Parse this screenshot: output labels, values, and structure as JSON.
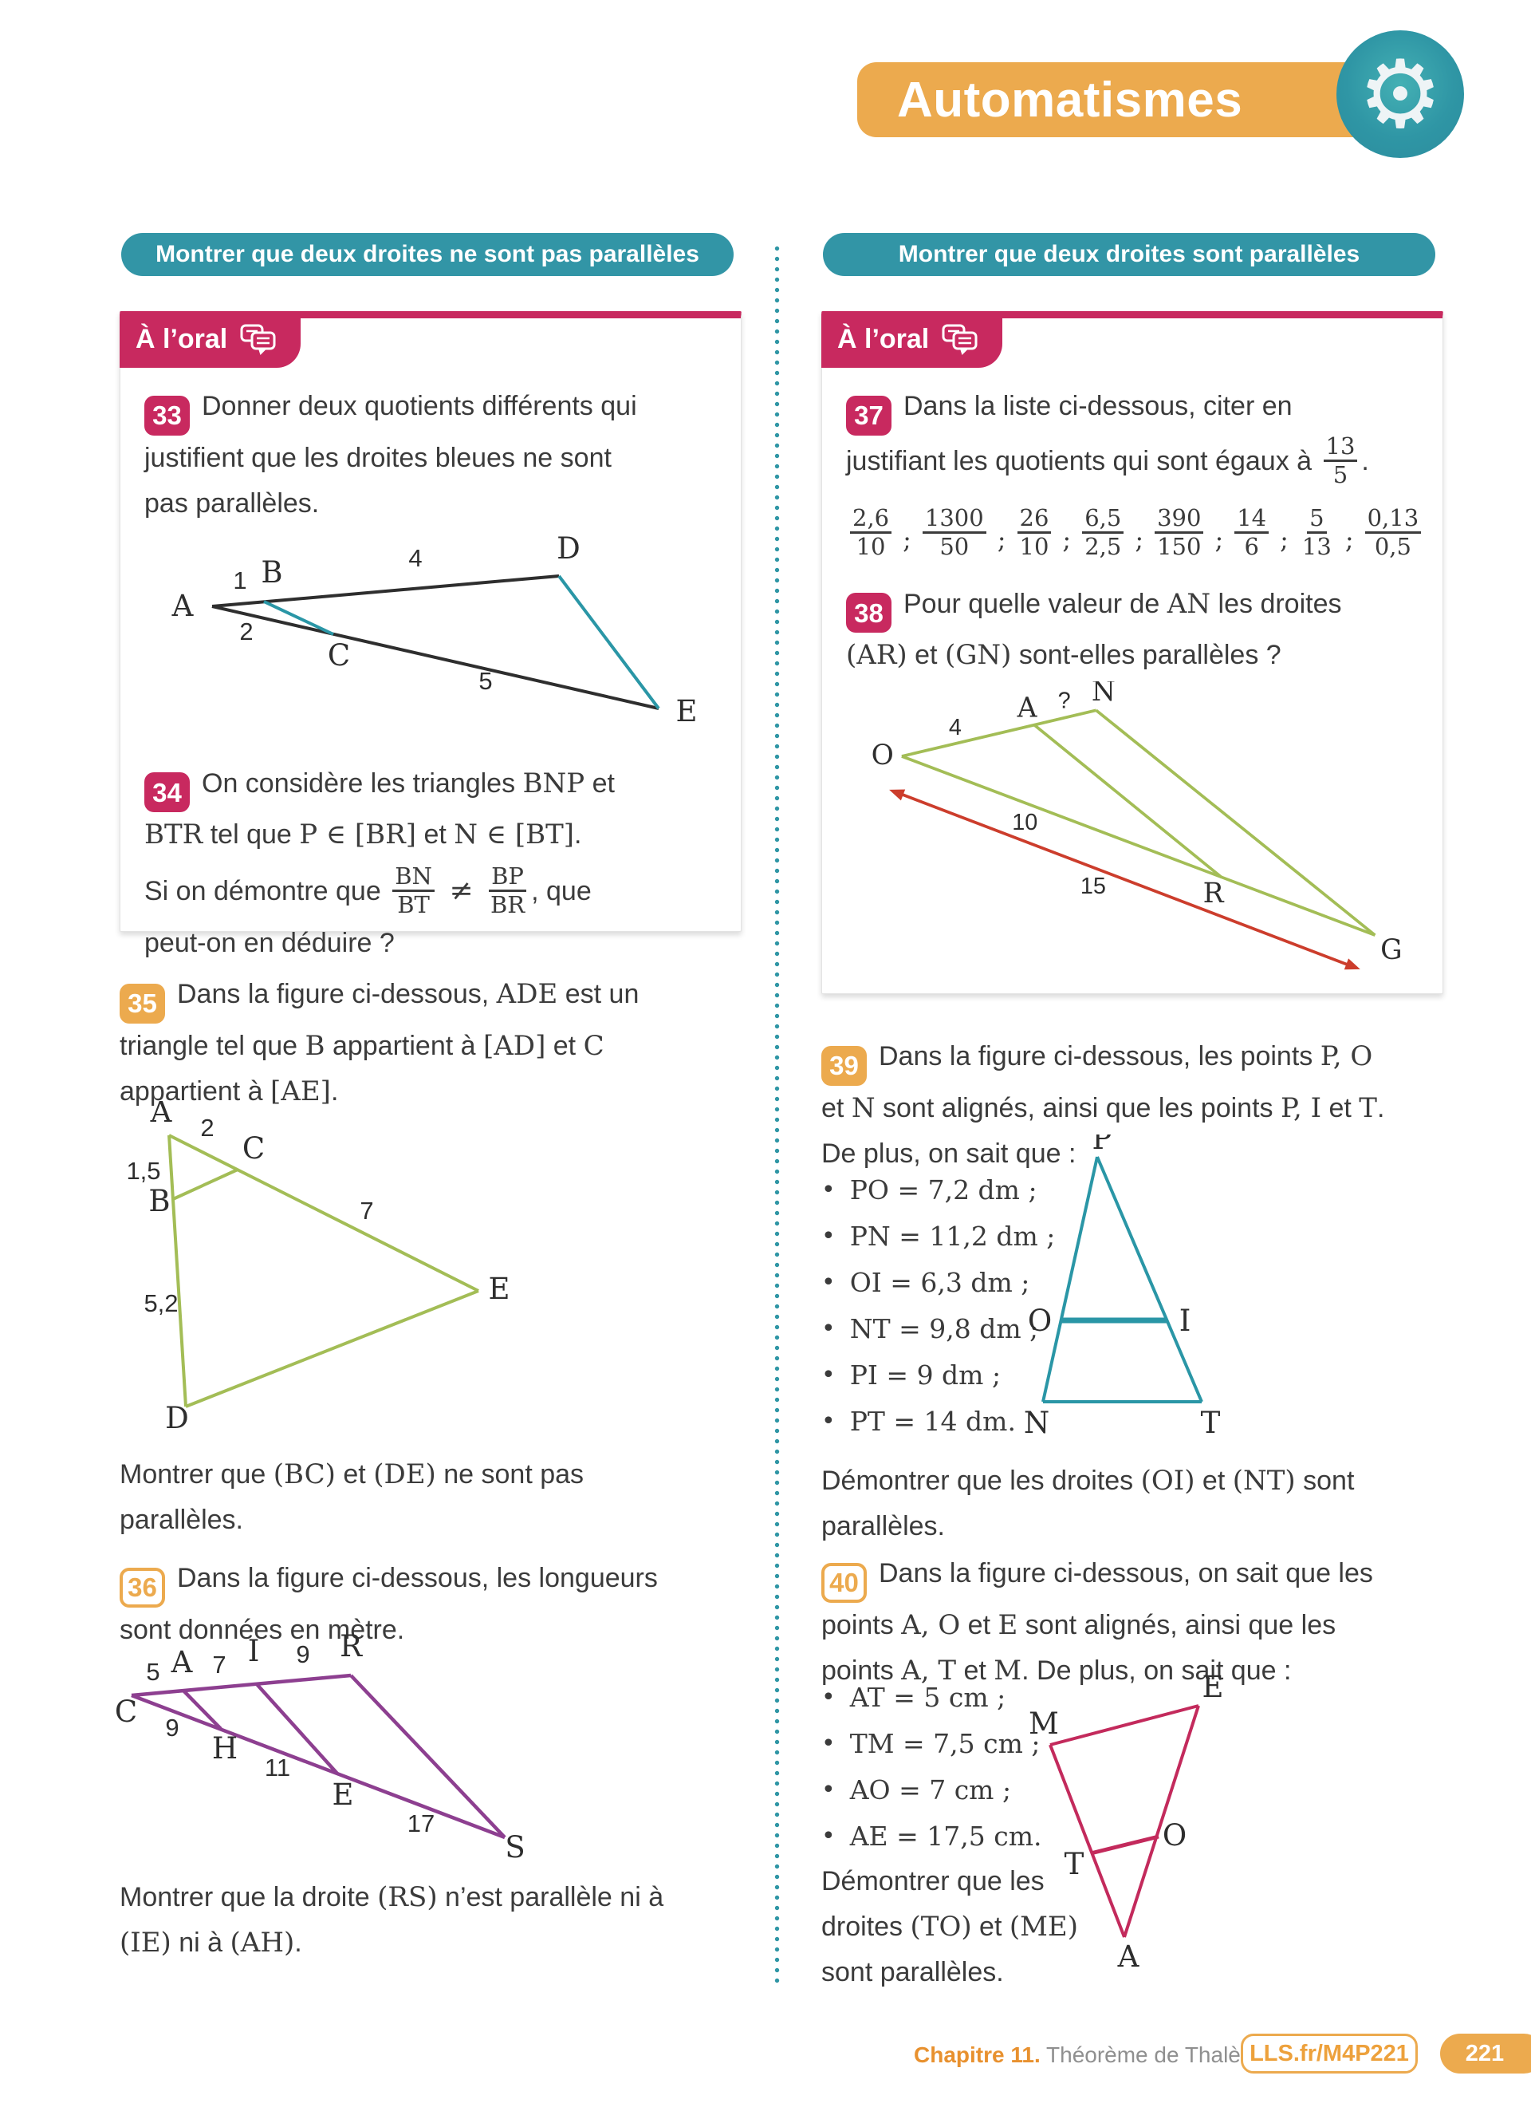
{
  "colors": {
    "teal": "#3295a6",
    "pink": "#c8295f",
    "yellow": "#ecaa4e",
    "green": "#a3bd56",
    "purple": "#8d3f90",
    "teal_fig": "#2a96a6",
    "crimson": "#c32a5c",
    "red": "#cc3d2c",
    "footer_orange": "#e8912f",
    "footer_gray": "#8f8f8f"
  },
  "header": {
    "title": "Automatismes",
    "gear_icon": "⚙"
  },
  "left": {
    "banner": "Montrer que deux droites ne sont pas parallèles",
    "oral_label": "À l’oral",
    "ex33": {
      "num": "33",
      "rich": [
        {
          "s": "Donner deux quotients différents qui"
        },
        {
          "br": true
        },
        {
          "s": "justifient que les droites bleues ne sont"
        },
        {
          "br": true
        },
        {
          "s": "pas parallèles."
        }
      ]
    },
    "fig33": {
      "labels": {
        "A": "A",
        "B": "B",
        "C": "C",
        "D": "D",
        "E": "E",
        "AB": "1",
        "BD": "4",
        "AC": "2",
        "CE": "5"
      }
    },
    "ex34": {
      "num": "34",
      "rich1": [
        {
          "s": "On considère les triangles "
        },
        {
          "s": "BNP",
          "c": "m"
        },
        {
          "s": " et"
        },
        {
          "br": true
        },
        {
          "s": "BTR",
          "c": "m"
        },
        {
          "s": " tel que "
        },
        {
          "s": "P ∈ [BR]",
          "c": "m"
        },
        {
          "s": " et "
        },
        {
          "s": "N ∈ [BT]",
          "c": "m"
        },
        {
          "s": "."
        }
      ],
      "rich2": [
        {
          "s": "Si on démontre que "
        },
        {
          "f": [
            "BN",
            "BT"
          ]
        },
        {
          "s": " ≠ ",
          "c": "neq"
        },
        {
          "f": [
            "BP",
            "BR"
          ]
        },
        {
          "s": ", que"
        },
        {
          "br": true
        },
        {
          "s": "peut-on en déduire ?"
        }
      ]
    },
    "ex35": {
      "num": "35",
      "rich": [
        {
          "s": "Dans la figure ci-dessous, "
        },
        {
          "s": "ADE",
          "c": "m"
        },
        {
          "s": " est un"
        },
        {
          "br": true
        },
        {
          "s": "triangle tel que "
        },
        {
          "s": "B",
          "c": "m"
        },
        {
          "s": " appartient à "
        },
        {
          "s": "[AD]",
          "c": "m"
        },
        {
          "s": " et "
        },
        {
          "s": "C",
          "c": "m"
        },
        {
          "br": true
        },
        {
          "s": "appartient à "
        },
        {
          "s": "[AE]",
          "c": "m"
        },
        {
          "s": "."
        }
      ],
      "conclusion": [
        {
          "s": "Montrer que "
        },
        {
          "s": "(BC)",
          "c": "m"
        },
        {
          "s": " et "
        },
        {
          "s": "(DE)",
          "c": "m"
        },
        {
          "s": " ne sont pas"
        },
        {
          "br": true
        },
        {
          "s": "parallèles."
        }
      ]
    },
    "fig35": {
      "labels": {
        "A": "A",
        "B": "B",
        "C": "C",
        "D": "D",
        "E": "E",
        "AC": "2",
        "AB": "1,5",
        "CE": "7",
        "BD": "5,2"
      }
    },
    "ex36": {
      "num": "36",
      "rich": [
        {
          "s": "Dans la figure ci-dessous, les longueurs"
        },
        {
          "br": true
        },
        {
          "s": "sont données en mètre."
        }
      ],
      "conclusion": [
        {
          "s": "Montrer que la droite "
        },
        {
          "s": "(RS)",
          "c": "m"
        },
        {
          "s": " n’est parallèle ni à"
        },
        {
          "br": true
        },
        {
          "s": "(IE)",
          "c": "m"
        },
        {
          "s": " ni à "
        },
        {
          "s": "(AH)",
          "c": "m"
        },
        {
          "s": "."
        }
      ]
    },
    "fig36": {
      "labels": {
        "C": "C",
        "A": "A",
        "I": "I",
        "R": "R",
        "H": "H",
        "E": "E",
        "S": "S",
        "CA": "5",
        "AI": "7",
        "IR": "9",
        "CH": "9",
        "HE": "11",
        "ES": "17"
      }
    }
  },
  "right": {
    "banner": "Montrer que deux droites sont parallèles",
    "oral_label": "À l’oral",
    "ex37": {
      "num": "37",
      "rich": [
        {
          "s": "Dans la liste ci-dessous, citer en"
        },
        {
          "br": true
        },
        {
          "s": "justifiant les quotients qui sont égaux à "
        },
        {
          "f": [
            "13",
            "5"
          ]
        },
        {
          "s": "."
        }
      ],
      "sep": ";",
      "fractions": [
        {
          "n": "2,6",
          "d": "10"
        },
        {
          "n": "1300",
          "d": "50"
        },
        {
          "n": "26",
          "d": "10"
        },
        {
          "n": "6,5",
          "d": "2,5"
        },
        {
          "n": "390",
          "d": "150"
        },
        {
          "n": "14",
          "d": "6"
        },
        {
          "n": "5",
          "d": "13"
        },
        {
          "n": "0,13",
          "d": "0,5"
        }
      ]
    },
    "ex38": {
      "num": "38",
      "rich": [
        {
          "s": "Pour quelle valeur de "
        },
        {
          "s": "AN",
          "c": "m"
        },
        {
          "s": " les droites"
        },
        {
          "br": true
        },
        {
          "s": "(AR)",
          "c": "m"
        },
        {
          "s": " et "
        },
        {
          "s": "(GN)",
          "c": "m"
        },
        {
          "s": " sont-elles parallèles ?"
        }
      ]
    },
    "fig38": {
      "labels": {
        "O": "O",
        "A": "A",
        "N": "N",
        "R": "R",
        "G": "G",
        "OA": "4",
        "AN": "?",
        "OR": "10",
        "OG": "15"
      }
    },
    "ex39": {
      "num": "39",
      "rich": [
        {
          "s": "Dans la figure ci-dessous, les points "
        },
        {
          "s": "P, O",
          "c": "m"
        },
        {
          "br": true
        },
        {
          "s": "et "
        },
        {
          "s": "N",
          "c": "m"
        },
        {
          "s": " sont alignés, ainsi que les points "
        },
        {
          "s": "P, I",
          "c": "m"
        },
        {
          "s": " et "
        },
        {
          "s": "T",
          "c": "m"
        },
        {
          "s": "."
        }
      ],
      "intro2": "De plus, on sait que :",
      "bullets": [
        "PO = 7,2 dm ;",
        "PN = 11,2 dm ;",
        "OI = 6,3 dm ;",
        "NT = 9,8 dm ;",
        "PI = 9 dm ;",
        "PT = 14 dm."
      ],
      "conclusion": [
        {
          "s": "Démontrer que les droites "
        },
        {
          "s": "(OI)",
          "c": "m"
        },
        {
          "s": " et "
        },
        {
          "s": "(NT)",
          "c": "m"
        },
        {
          "s": " sont"
        },
        {
          "br": true
        },
        {
          "s": "parallèles."
        }
      ]
    },
    "fig39": {
      "labels": {
        "P": "P",
        "O": "O",
        "I": "I",
        "N": "N",
        "T": "T"
      }
    },
    "ex40": {
      "num": "40",
      "rich": [
        {
          "s": "Dans la figure ci-dessous, on sait que les"
        },
        {
          "br": true
        },
        {
          "s": "points "
        },
        {
          "s": "A, O",
          "c": "m"
        },
        {
          "s": " et "
        },
        {
          "s": "E",
          "c": "m"
        },
        {
          "s": " sont alignés, ainsi que les"
        },
        {
          "br": true
        },
        {
          "s": "points "
        },
        {
          "s": "A, T",
          "c": "m"
        },
        {
          "s": " et "
        },
        {
          "s": "M",
          "c": "m"
        },
        {
          "s": ". De plus, on sait que :"
        }
      ],
      "bullets": [
        "AT = 5 cm ;",
        "TM = 7,5 cm ;",
        "AO = 7 cm ;",
        "AE = 17,5 cm."
      ],
      "conclusion": [
        {
          "s": "Démontrer que les"
        },
        {
          "br": true
        },
        {
          "s": "droites "
        },
        {
          "s": "(TO)",
          "c": "m"
        },
        {
          "s": " et "
        },
        {
          "s": "(ME)",
          "c": "m"
        },
        {
          "br": true
        },
        {
          "s": "sont parallèles."
        }
      ]
    },
    "fig40": {
      "labels": {
        "M": "M",
        "E": "E",
        "T": "T",
        "O": "O",
        "A": "A"
      }
    }
  },
  "footer": {
    "chapter_label": "Chapitre 11.",
    "chapter_name": "Théorème de Thalès",
    "link_label": "LLS.fr/M4P221",
    "page_number": "221"
  }
}
